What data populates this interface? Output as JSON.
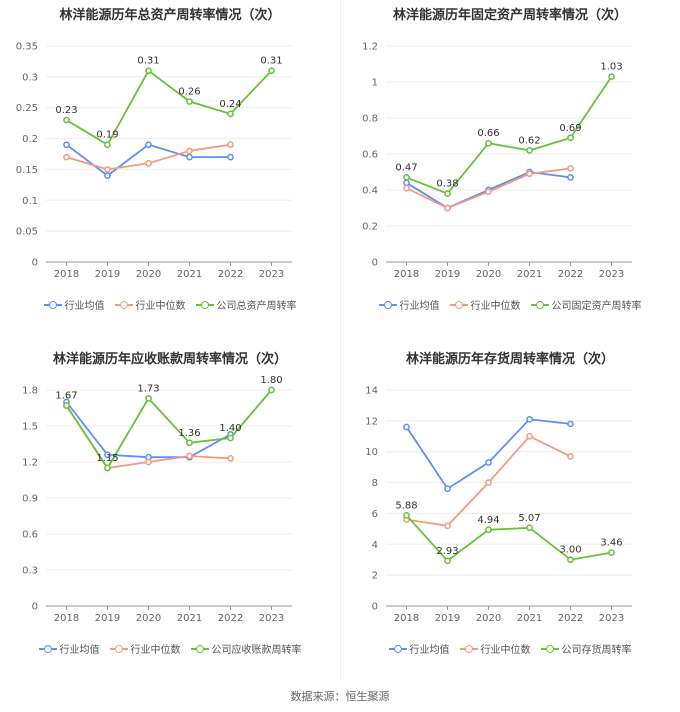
{
  "colors": {
    "company": "#66c23a",
    "avg": "#5b8ff9",
    "median": "#f59a7e",
    "grid": "#eeeeee",
    "axis": "#999999"
  },
  "footer": {
    "source_text": "数据来源：恒生聚源"
  },
  "chart_data": [
    {
      "type": "line",
      "title": "林洋能源历年总资产周转率情况（次）",
      "categories": [
        "2018",
        "2019",
        "2020",
        "2021",
        "2022",
        "2023"
      ],
      "y_ticks": [
        "0",
        "0.05",
        "0.1",
        "0.15",
        "0.2",
        "0.25",
        "0.3",
        "0.35"
      ],
      "ylim": [
        0,
        0.35
      ],
      "series": [
        {
          "name": "公司总资产周转率",
          "role": "company",
          "values": [
            0.23,
            0.19,
            0.31,
            0.26,
            0.24,
            0.31
          ],
          "labels": [
            "0.23",
            "0.19",
            "0.31",
            "0.26",
            "0.24",
            "0.31"
          ]
        },
        {
          "name": "行业均值",
          "role": "avg",
          "values": [
            0.19,
            0.14,
            0.19,
            0.17,
            0.17,
            null
          ]
        },
        {
          "name": "行业中位数",
          "role": "median",
          "values": [
            0.17,
            0.15,
            0.16,
            0.18,
            0.19,
            null
          ]
        }
      ]
    },
    {
      "type": "line",
      "title": "林洋能源历年固定资产周转率情况（次）",
      "categories": [
        "2018",
        "2019",
        "2020",
        "2021",
        "2022",
        "2023"
      ],
      "y_ticks": [
        "0",
        "0.2",
        "0.4",
        "0.6",
        "0.8",
        "1",
        "1.2"
      ],
      "ylim": [
        0,
        1.2
      ],
      "series": [
        {
          "name": "公司固定资产周转率",
          "role": "company",
          "values": [
            0.47,
            0.38,
            0.66,
            0.62,
            0.69,
            1.03
          ],
          "labels": [
            "0.47",
            "0.38",
            "0.66",
            "0.62",
            "0.69",
            "1.03"
          ]
        },
        {
          "name": "行业均值",
          "role": "avg",
          "values": [
            0.44,
            0.3,
            0.4,
            0.5,
            0.47,
            null
          ]
        },
        {
          "name": "行业中位数",
          "role": "median",
          "values": [
            0.41,
            0.3,
            0.39,
            0.49,
            0.52,
            null
          ]
        }
      ]
    },
    {
      "type": "line",
      "title": "林洋能源历年应收账款周转率情况（次）",
      "categories": [
        "2018",
        "2019",
        "2020",
        "2021",
        "2022",
        "2023"
      ],
      "y_ticks": [
        "0",
        "0.3",
        "0.6",
        "0.9",
        "1.2",
        "1.5",
        "1.8"
      ],
      "ylim": [
        0,
        1.8
      ],
      "series": [
        {
          "name": "公司应收账款周转率",
          "role": "company",
          "values": [
            1.67,
            1.15,
            1.73,
            1.36,
            1.4,
            1.8
          ],
          "labels": [
            "1.67",
            "1.15",
            "1.73",
            "1.36",
            "1.40",
            "1.80"
          ]
        },
        {
          "name": "行业均值",
          "role": "avg",
          "values": [
            1.7,
            1.26,
            1.24,
            1.24,
            1.43,
            null
          ]
        },
        {
          "name": "行业中位数",
          "role": "median",
          "values": [
            1.67,
            1.15,
            1.2,
            1.25,
            1.23,
            null
          ]
        }
      ]
    },
    {
      "type": "line",
      "title": "林洋能源历年存货周转率情况（次）",
      "categories": [
        "2018",
        "2019",
        "2020",
        "2021",
        "2022",
        "2023"
      ],
      "y_ticks": [
        "0",
        "2",
        "4",
        "6",
        "8",
        "10",
        "12",
        "14"
      ],
      "ylim": [
        0,
        14
      ],
      "series": [
        {
          "name": "公司存货周转率",
          "role": "company",
          "values": [
            5.88,
            2.93,
            4.94,
            5.07,
            3.0,
            3.46
          ],
          "labels": [
            "5.88",
            "2.93",
            "4.94",
            "5.07",
            "3.00",
            "3.46"
          ]
        },
        {
          "name": "行业均值",
          "role": "avg",
          "values": [
            11.6,
            7.6,
            9.3,
            12.1,
            11.8,
            null
          ]
        },
        {
          "name": "行业中位数",
          "role": "median",
          "values": [
            5.6,
            5.2,
            8.0,
            11.0,
            9.7,
            null
          ]
        }
      ]
    }
  ]
}
